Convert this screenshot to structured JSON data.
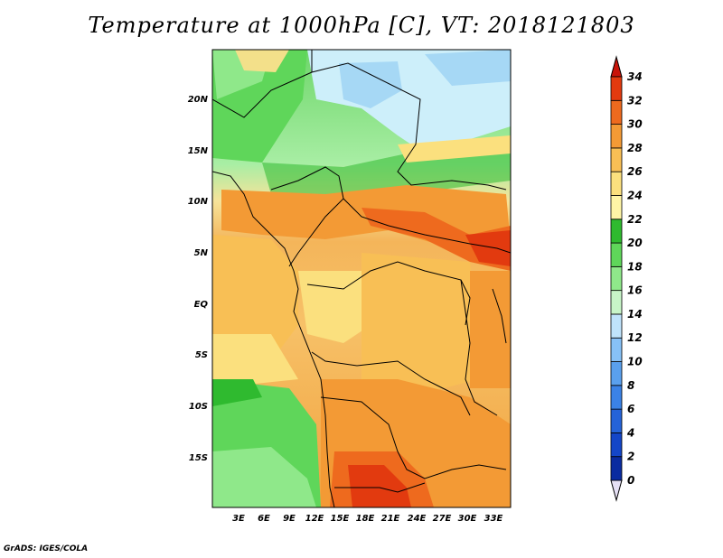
{
  "title": "Temperature at 1000hPa [C], VT: 2018121803",
  "credit": "GrADS: IGES/COLA",
  "map": {
    "lat_labels": [
      "20N",
      "15N",
      "10N",
      "5N",
      "EQ",
      "5S",
      "10S",
      "15S"
    ],
    "lon_labels": [
      "3E",
      "6E",
      "9E",
      "12E",
      "15E",
      "18E",
      "21E",
      "24E",
      "27E",
      "30E",
      "33E"
    ]
  },
  "colorbar": {
    "levels": [
      "0",
      "2",
      "4",
      "6",
      "8",
      "10",
      "12",
      "14",
      "16",
      "18",
      "20",
      "22",
      "24",
      "26",
      "28",
      "30",
      "32",
      "34"
    ],
    "colors": [
      "#0b0b6e",
      "#0a2ba0",
      "#1446c8",
      "#2563d9",
      "#3b82e6",
      "#5aa0ee",
      "#87c1f7",
      "#bfe3fb",
      "#c8f5c8",
      "#8fe88a",
      "#5fd65a",
      "#2fba2f",
      "#fff5a6",
      "#fbe07e",
      "#f8bf55",
      "#f39a35",
      "#ee6a1e",
      "#e23a0f"
    ],
    "under_color": "#e6e0f5",
    "over_color": "#c8140a"
  }
}
